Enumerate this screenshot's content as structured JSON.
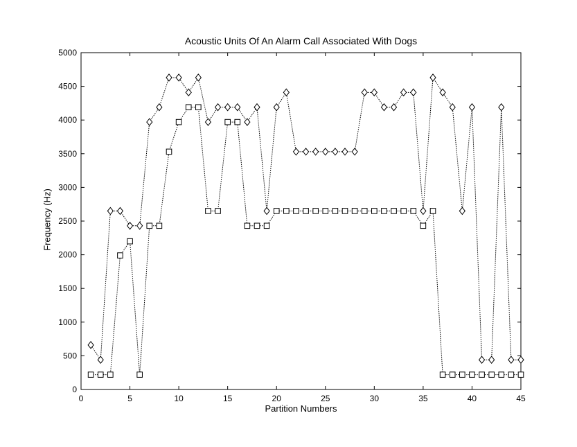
{
  "chart_data": {
    "type": "line",
    "title": "Acoustic Units Of An Alarm Call Associated With Dogs",
    "xlabel": "Partition Numbers",
    "ylabel": "Frequency (Hz)",
    "xlim": [
      0,
      45
    ],
    "ylim": [
      0,
      5000
    ],
    "xticks": [
      0,
      5,
      10,
      15,
      20,
      25,
      30,
      35,
      40,
      45
    ],
    "yticks": [
      0,
      500,
      1000,
      1500,
      2000,
      2500,
      3000,
      3500,
      4000,
      4500,
      5000
    ],
    "grid": false,
    "x": [
      1,
      2,
      3,
      4,
      5,
      6,
      7,
      8,
      9,
      10,
      11,
      12,
      13,
      14,
      15,
      16,
      17,
      18,
      19,
      20,
      21,
      22,
      23,
      24,
      25,
      26,
      27,
      28,
      29,
      30,
      31,
      32,
      33,
      34,
      35,
      36,
      37,
      38,
      39,
      40,
      41,
      42,
      43,
      44,
      45
    ],
    "series": [
      {
        "marker": "diamond",
        "color": "#000000",
        "values": [
          660,
          440,
          2650,
          2650,
          2430,
          2430,
          3970,
          4190,
          4630,
          4630,
          4410,
          4630,
          3970,
          4190,
          4190,
          4190,
          3970,
          4190,
          2650,
          4190,
          4410,
          3530,
          3530,
          3530,
          3530,
          3530,
          3530,
          3530,
          4410,
          4410,
          4190,
          4190,
          4410,
          4410,
          2650,
          4630,
          4410,
          4190,
          2650,
          4190,
          440,
          440,
          4190,
          440,
          440
        ]
      },
      {
        "marker": "square",
        "color": "#000000",
        "values": [
          220,
          220,
          220,
          1990,
          2200,
          220,
          2430,
          2430,
          3530,
          3970,
          4190,
          4190,
          2650,
          2650,
          3970,
          3970,
          2430,
          2430,
          2430,
          2650,
          2650,
          2650,
          2650,
          2650,
          2650,
          2650,
          2650,
          2650,
          2650,
          2650,
          2650,
          2650,
          2650,
          2650,
          2430,
          2650,
          220,
          220,
          220,
          220,
          220,
          220,
          220,
          220,
          220
        ]
      }
    ]
  }
}
